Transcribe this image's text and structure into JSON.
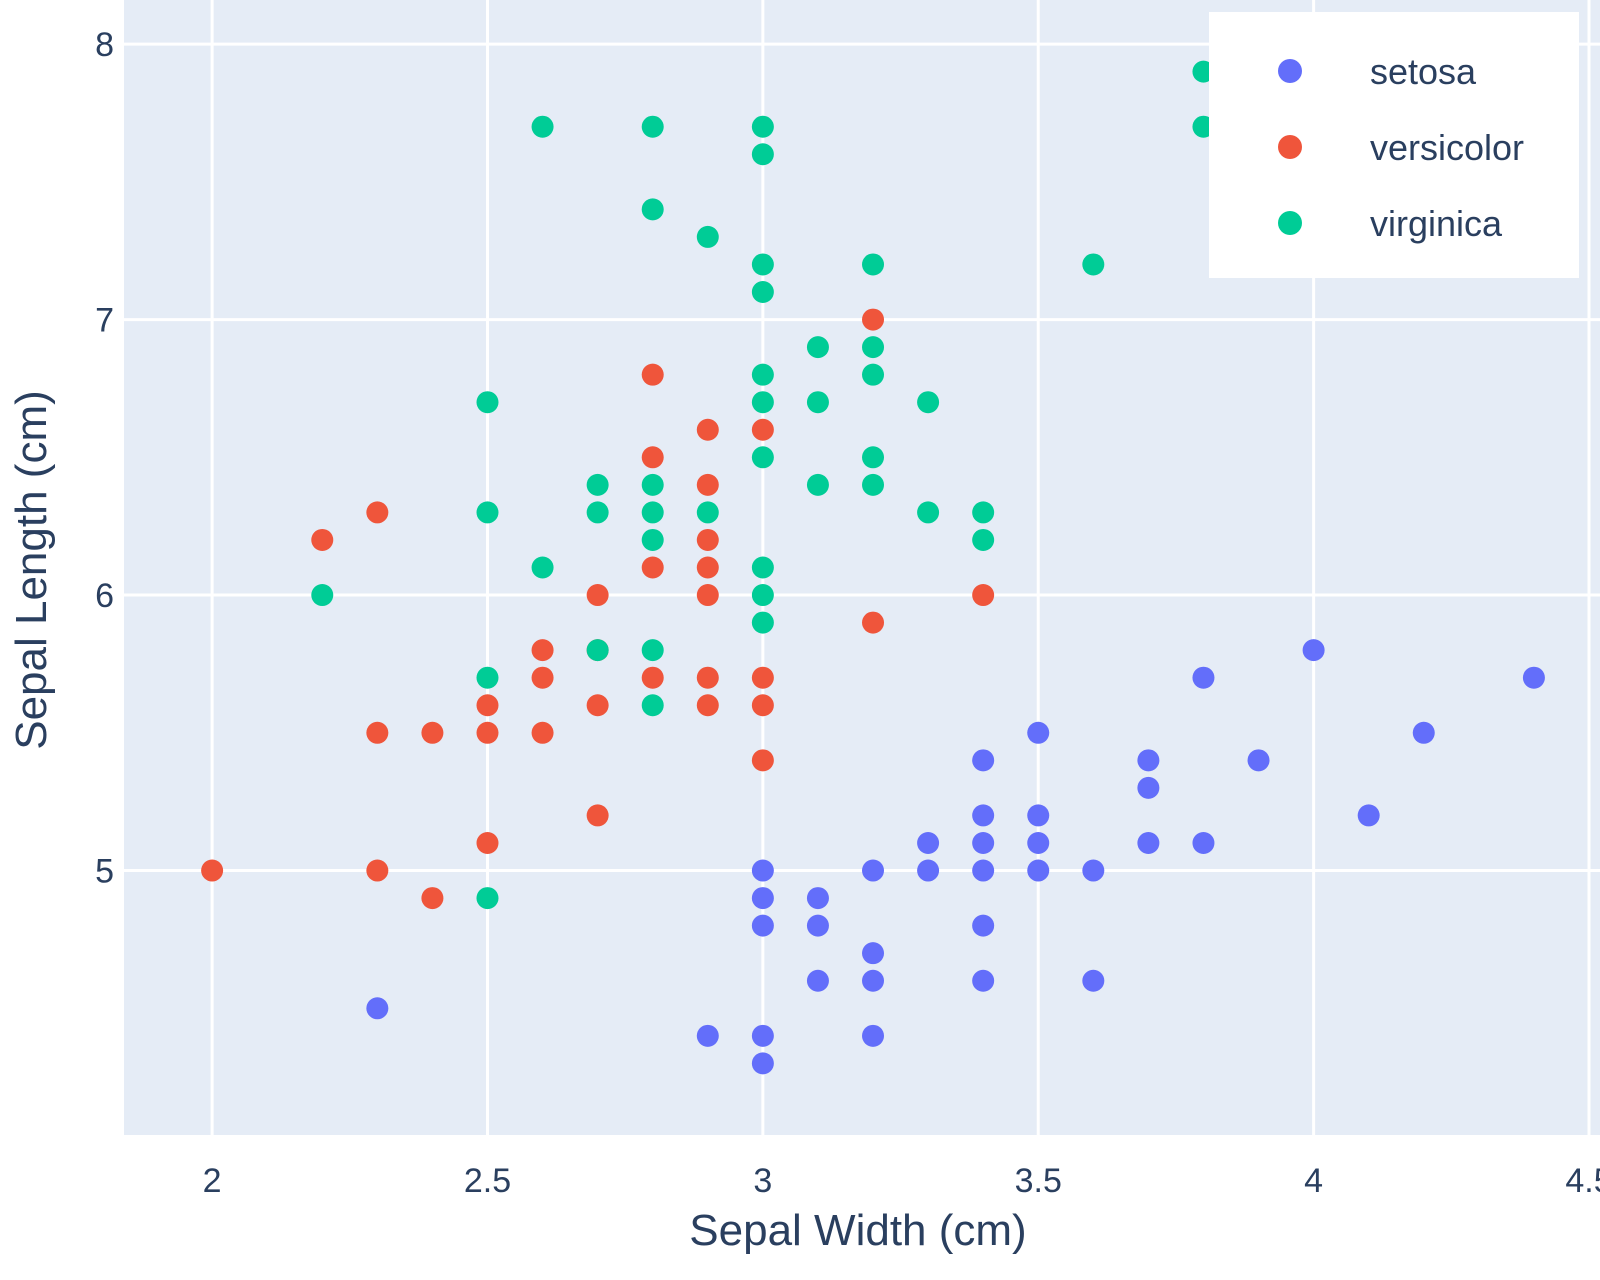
{
  "chart_data": {
    "type": "scatter",
    "title": "",
    "xlabel": "Sepal Width (cm)",
    "ylabel": "Sepal Length (cm)",
    "xlim": [
      1.84,
      4.52
    ],
    "ylim": [
      4.04,
      8.16
    ],
    "xticks": [
      2,
      2.5,
      3,
      3.5,
      4,
      4.5
    ],
    "xtick_labels": [
      "2",
      "2.5",
      "3",
      "3.5",
      "4",
      "4.5"
    ],
    "yticks": [
      5,
      6,
      7,
      8
    ],
    "ytick_labels": [
      "5",
      "6",
      "7",
      "8"
    ],
    "grid": true,
    "legend_position": "top-right",
    "plot_bg": "#e5ecf6",
    "series": [
      {
        "name": "setosa",
        "color": "#636efa",
        "points": [
          [
            2.3,
            4.5
          ],
          [
            2.9,
            4.4
          ],
          [
            3.0,
            4.4
          ],
          [
            3.0,
            4.3
          ],
          [
            3.2,
            4.4
          ],
          [
            3.0,
            5.0
          ],
          [
            3.0,
            4.9
          ],
          [
            3.0,
            4.8
          ],
          [
            3.1,
            4.9
          ],
          [
            3.1,
            4.8
          ],
          [
            3.1,
            4.6
          ],
          [
            3.2,
            5.0
          ],
          [
            3.2,
            4.7
          ],
          [
            3.2,
            4.6
          ],
          [
            3.3,
            5.1
          ],
          [
            3.3,
            5.0
          ],
          [
            3.4,
            5.4
          ],
          [
            3.4,
            5.2
          ],
          [
            3.4,
            5.1
          ],
          [
            3.4,
            5.0
          ],
          [
            3.4,
            4.8
          ],
          [
            3.4,
            4.6
          ],
          [
            3.5,
            5.5
          ],
          [
            3.5,
            5.2
          ],
          [
            3.5,
            5.1
          ],
          [
            3.5,
            5.0
          ],
          [
            3.6,
            5.0
          ],
          [
            3.6,
            4.6
          ],
          [
            3.7,
            5.4
          ],
          [
            3.7,
            5.3
          ],
          [
            3.7,
            5.1
          ],
          [
            3.8,
            5.7
          ],
          [
            3.8,
            5.1
          ],
          [
            3.9,
            5.4
          ],
          [
            4.0,
            5.8
          ],
          [
            4.1,
            5.2
          ],
          [
            4.2,
            5.5
          ],
          [
            4.4,
            5.7
          ]
        ]
      },
      {
        "name": "versicolor",
        "color": "#ef553b",
        "points": [
          [
            2.0,
            5.0
          ],
          [
            2.2,
            6.2
          ],
          [
            2.3,
            6.3
          ],
          [
            2.3,
            5.5
          ],
          [
            2.3,
            5.0
          ],
          [
            2.4,
            5.5
          ],
          [
            2.4,
            4.9
          ],
          [
            2.5,
            5.6
          ],
          [
            2.5,
            5.5
          ],
          [
            2.5,
            5.1
          ],
          [
            2.6,
            5.8
          ],
          [
            2.6,
            5.7
          ],
          [
            2.6,
            5.5
          ],
          [
            2.7,
            6.0
          ],
          [
            2.7,
            5.8
          ],
          [
            2.7,
            5.6
          ],
          [
            2.7,
            5.2
          ],
          [
            2.8,
            6.8
          ],
          [
            2.8,
            6.5
          ],
          [
            2.8,
            6.1
          ],
          [
            2.8,
            5.7
          ],
          [
            2.9,
            6.6
          ],
          [
            2.9,
            6.4
          ],
          [
            2.9,
            6.2
          ],
          [
            2.9,
            6.1
          ],
          [
            2.9,
            6.0
          ],
          [
            2.9,
            5.7
          ],
          [
            2.9,
            5.6
          ],
          [
            3.0,
            6.6
          ],
          [
            3.0,
            5.7
          ],
          [
            3.0,
            5.6
          ],
          [
            3.0,
            5.4
          ],
          [
            3.2,
            7.0
          ],
          [
            3.2,
            5.9
          ],
          [
            3.4,
            6.0
          ]
        ]
      },
      {
        "name": "virginica",
        "color": "#00cc96",
        "points": [
          [
            2.2,
            6.0
          ],
          [
            2.5,
            6.7
          ],
          [
            2.5,
            6.3
          ],
          [
            2.5,
            5.7
          ],
          [
            2.5,
            4.9
          ],
          [
            2.6,
            7.7
          ],
          [
            2.6,
            6.1
          ],
          [
            2.7,
            6.4
          ],
          [
            2.7,
            6.3
          ],
          [
            2.7,
            5.8
          ],
          [
            2.8,
            7.7
          ],
          [
            2.8,
            7.4
          ],
          [
            2.8,
            6.4
          ],
          [
            2.8,
            6.3
          ],
          [
            2.8,
            6.2
          ],
          [
            2.8,
            5.8
          ],
          [
            2.8,
            5.6
          ],
          [
            2.9,
            7.3
          ],
          [
            2.9,
            6.3
          ],
          [
            3.0,
            7.7
          ],
          [
            3.0,
            7.6
          ],
          [
            3.0,
            7.2
          ],
          [
            3.0,
            7.1
          ],
          [
            3.0,
            6.8
          ],
          [
            3.0,
            6.7
          ],
          [
            3.0,
            6.5
          ],
          [
            3.0,
            6.1
          ],
          [
            3.0,
            6.0
          ],
          [
            3.0,
            5.9
          ],
          [
            3.1,
            6.9
          ],
          [
            3.1,
            6.7
          ],
          [
            3.1,
            6.4
          ],
          [
            3.2,
            7.2
          ],
          [
            3.2,
            6.9
          ],
          [
            3.2,
            6.8
          ],
          [
            3.2,
            6.5
          ],
          [
            3.2,
            6.4
          ],
          [
            3.3,
            6.7
          ],
          [
            3.3,
            6.3
          ],
          [
            3.4,
            6.3
          ],
          [
            3.4,
            6.2
          ],
          [
            3.6,
            7.2
          ],
          [
            3.8,
            7.9
          ],
          [
            3.8,
            7.7
          ]
        ]
      }
    ]
  }
}
